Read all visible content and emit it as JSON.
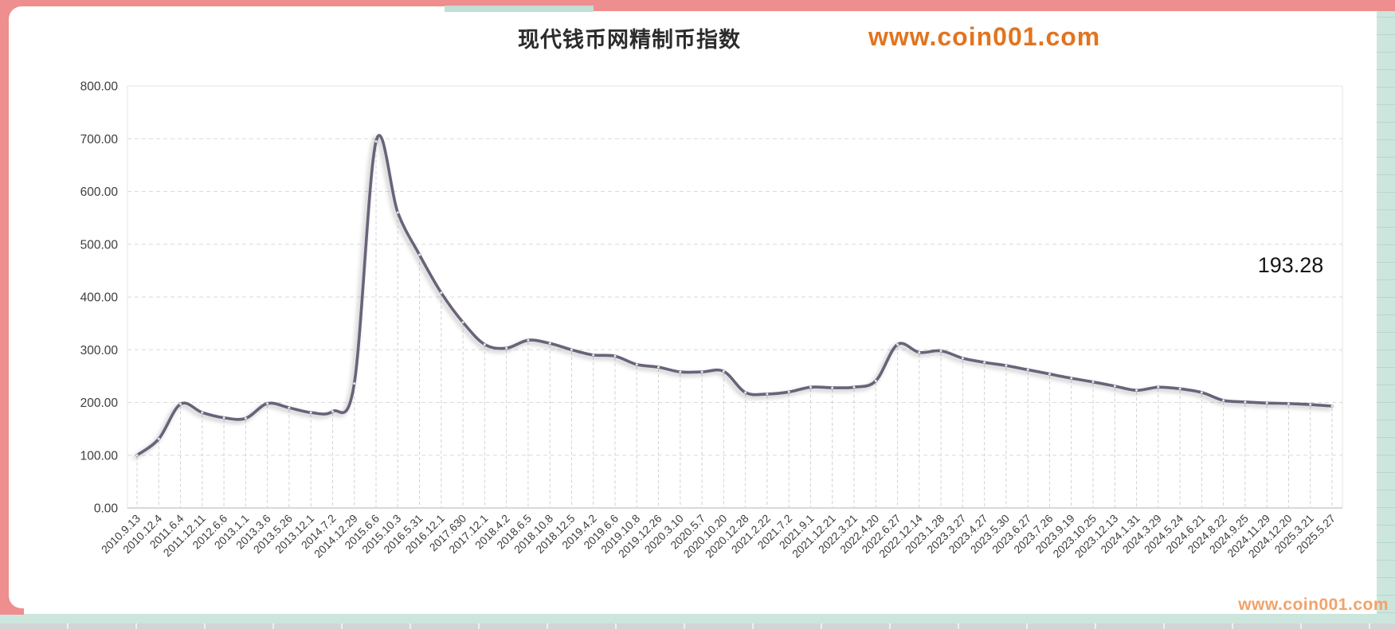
{
  "header": {
    "title": "现代钱币网精制币指数",
    "watermark": "www.coin001.com"
  },
  "footer": {
    "watermark": "www.coin001.com"
  },
  "value_label": {
    "text": "193.28"
  },
  "colors": {
    "series_line": "#6a6279",
    "watermark_top": "#e2741f",
    "watermark_bottom": "#f2a269",
    "frame_pink": "#ee8e8e",
    "frame_teal": "#cde6dd",
    "gridline": "#d9d9d9",
    "axis_text": "#3d3d3d"
  },
  "chart_data": {
    "type": "line",
    "title": "现代钱币网精制币指数",
    "xlabel": "",
    "ylabel": "",
    "ylim": [
      0,
      800
    ],
    "ytick_interval": 100,
    "ytick_labels": [
      "800.00",
      "700.00",
      "600.00",
      "500.00",
      "400.00",
      "300.00",
      "200.00",
      "100.00",
      "0.00"
    ],
    "grid": "dashed horizontal gridlines + dashed vertical drop lines at each point",
    "legend": "none",
    "last_value_label": "193.28",
    "categories": [
      "2010.9.13",
      "2010.12.4",
      "2011.6.4",
      "2011.12.11",
      "2012.6.6",
      "2013.1.1",
      "2013.3.6",
      "2013.5.26",
      "2013.12.1",
      "2014.7.2",
      "2014.12.29",
      "2015.6.6",
      "2015.10.3",
      "2016.5.31",
      "2016.12.1",
      "2017.630",
      "2017.12.1",
      "2018.4.2",
      "2018.6.5",
      "2018.10.8",
      "2018.12.5",
      "2019.4.2",
      "2019.6.6",
      "2019.10.8",
      "2019.12.26",
      "2020.3.10",
      "2020.5.7",
      "2020.10.20",
      "2020.12.28",
      "2021.2.22",
      "2021.7.2",
      "2021.9.1",
      "2021.12.21",
      "2022.3.21",
      "2022.4.20",
      "2022.6.27",
      "2022.12.14",
      "2023.1.28",
      "2023.3.27",
      "2023.4.27",
      "2023.5.30",
      "2023.6.27",
      "2023.7.26",
      "2023.9.19",
      "2023.10.25",
      "2023.12.13",
      "2024.1.31",
      "2024.3.29",
      "2024.5.24",
      "2024.6.21",
      "2024.8.22",
      "2024.9.25",
      "2024.11.29",
      "2024.12.20",
      "2025.3.21",
      "2025.5.27"
    ],
    "series": [
      {
        "name": "现代钱币网精制币指数",
        "color": "#6a6279",
        "values": [
          100,
          131,
          197,
          181,
          171,
          170,
          198,
          190,
          181,
          183,
          236,
          695,
          560,
          480,
          408,
          352,
          310,
          303,
          318,
          312,
          300,
          290,
          288,
          272,
          267,
          258,
          258,
          259,
          219,
          216,
          220,
          229,
          228,
          229,
          241,
          310,
          295,
          298,
          284,
          276,
          270,
          262,
          254,
          246,
          239,
          231,
          223,
          229,
          226,
          219,
          204,
          201,
          199,
          198,
          196,
          193.28
        ]
      }
    ]
  }
}
